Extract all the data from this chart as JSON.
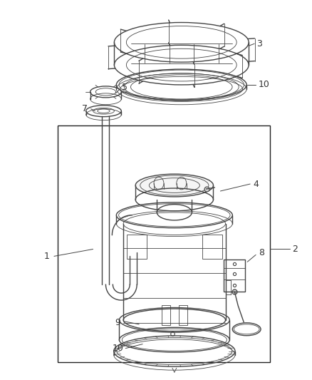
{
  "bg_color": "#ffffff",
  "label_color": "#333333",
  "line_color": "#444444",
  "box_color": "#222222",
  "figure_width": 4.38,
  "figure_height": 5.33,
  "lw_main": 1.0,
  "lw_thin": 0.6,
  "lw_thick": 1.4
}
